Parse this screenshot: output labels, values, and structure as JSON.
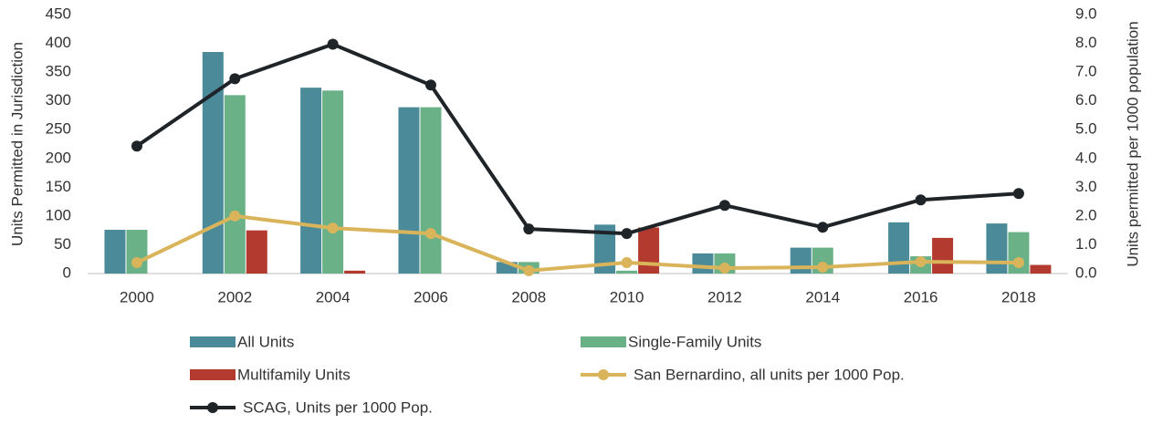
{
  "chart_data": {
    "type": "bar",
    "categories": [
      "2000",
      "2002",
      "2004",
      "2006",
      "2008",
      "2010",
      "2012",
      "2014",
      "2016",
      "2018"
    ],
    "ylabel": "Units Permitted in Jurisdiction",
    "y2label": "Units permitted per 1000 population",
    "ylim": [
      0,
      450
    ],
    "yticks": [
      0,
      50,
      100,
      150,
      200,
      250,
      300,
      350,
      400,
      450
    ],
    "y2lim": [
      0,
      9
    ],
    "y2ticks": [
      {
        "value": 0,
        "label": "0.0"
      },
      {
        "value": 1,
        "label": "1.0"
      },
      {
        "value": 2,
        "label": "2.0"
      },
      {
        "value": 3,
        "label": "3.0"
      },
      {
        "value": 4,
        "label": "4.0"
      },
      {
        "value": 5,
        "label": "5.0"
      },
      {
        "value": 6,
        "label": "6.0"
      },
      {
        "value": 7,
        "label": "7.0"
      },
      {
        "value": 8,
        "label": "8.0"
      },
      {
        "value": 9,
        "label": "9.0"
      }
    ],
    "series": [
      {
        "name": "All Units",
        "type": "bar",
        "color": "#4a8a99",
        "values": [
          76,
          385,
          323,
          289,
          20,
          85,
          35,
          45,
          89,
          87
        ]
      },
      {
        "name": "Single-Family Units",
        "type": "bar",
        "color": "#6ab187",
        "values": [
          76,
          310,
          318,
          289,
          20,
          5,
          35,
          45,
          30,
          72
        ]
      },
      {
        "name": "Multifamily Units",
        "type": "bar",
        "color": "#b23a2e",
        "values": [
          0,
          75,
          5,
          0,
          0,
          80,
          0,
          0,
          62,
          15
        ]
      },
      {
        "name": "San Bernardino, all units per 1000 Pop.",
        "type": "line",
        "axis": "y2",
        "color": "#d9b45a",
        "values": [
          0.38,
          2.0,
          1.58,
          1.39,
          0.1,
          0.38,
          0.19,
          0.22,
          0.41,
          0.38
        ]
      },
      {
        "name": "SCAG, Units per 1000 Pop.",
        "type": "line",
        "axis": "y2",
        "color": "#1f2428",
        "values": [
          4.43,
          6.77,
          7.97,
          6.55,
          1.55,
          1.39,
          2.37,
          1.61,
          2.56,
          2.78
        ]
      }
    ]
  }
}
